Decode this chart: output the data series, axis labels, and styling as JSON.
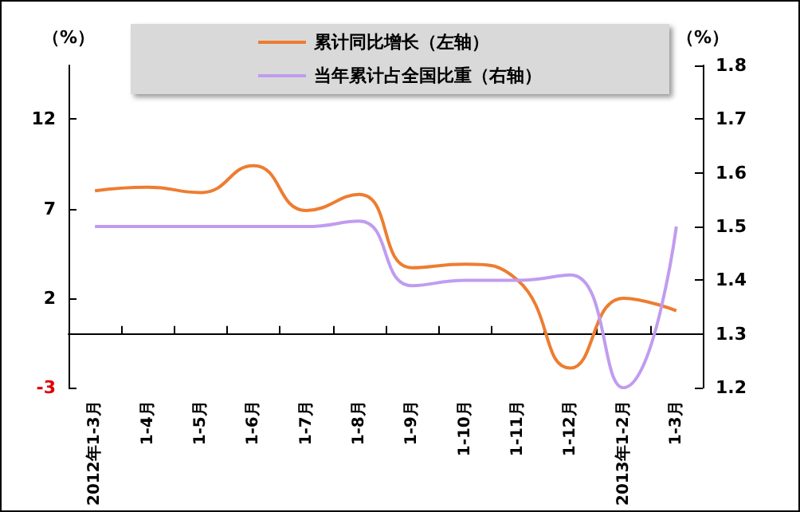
{
  "chart_data": {
    "type": "line",
    "ylabel": "（%）",
    "y2label": "（%）",
    "categories": [
      "2012年1-3月",
      "1-4月",
      "1-5月",
      "1-6月",
      "1-7月",
      "1-8月",
      "1-9月",
      "1-10月",
      "1-11月",
      "1-12月",
      "2013年1-2月",
      "1-3月"
    ],
    "series": [
      {
        "name": "累计同比增长（左轴）",
        "color": "#ed7d31",
        "values": [
          8.0,
          8.2,
          7.9,
          9.4,
          6.9,
          7.8,
          3.7,
          3.9,
          3.0,
          -1.9,
          2.0,
          1.3
        ]
      },
      {
        "name": "当年累计占全国比重（右轴）",
        "color": "#c09cf0",
        "axis": "y2",
        "values": [
          1.5,
          1.5,
          1.5,
          1.5,
          1.5,
          1.51,
          1.39,
          1.4,
          1.4,
          1.41,
          1.2,
          1.5
        ]
      }
    ],
    "ylim": [
      -3,
      15
    ],
    "yticks": [
      -3,
      2,
      7,
      12
    ],
    "y2lim": [
      1.2,
      1.8
    ],
    "y2ticks": [
      1.2,
      1.3,
      1.4,
      1.5,
      1.6,
      1.7,
      1.8
    ],
    "legend": "top",
    "marker": "none",
    "line_style": "solid"
  }
}
